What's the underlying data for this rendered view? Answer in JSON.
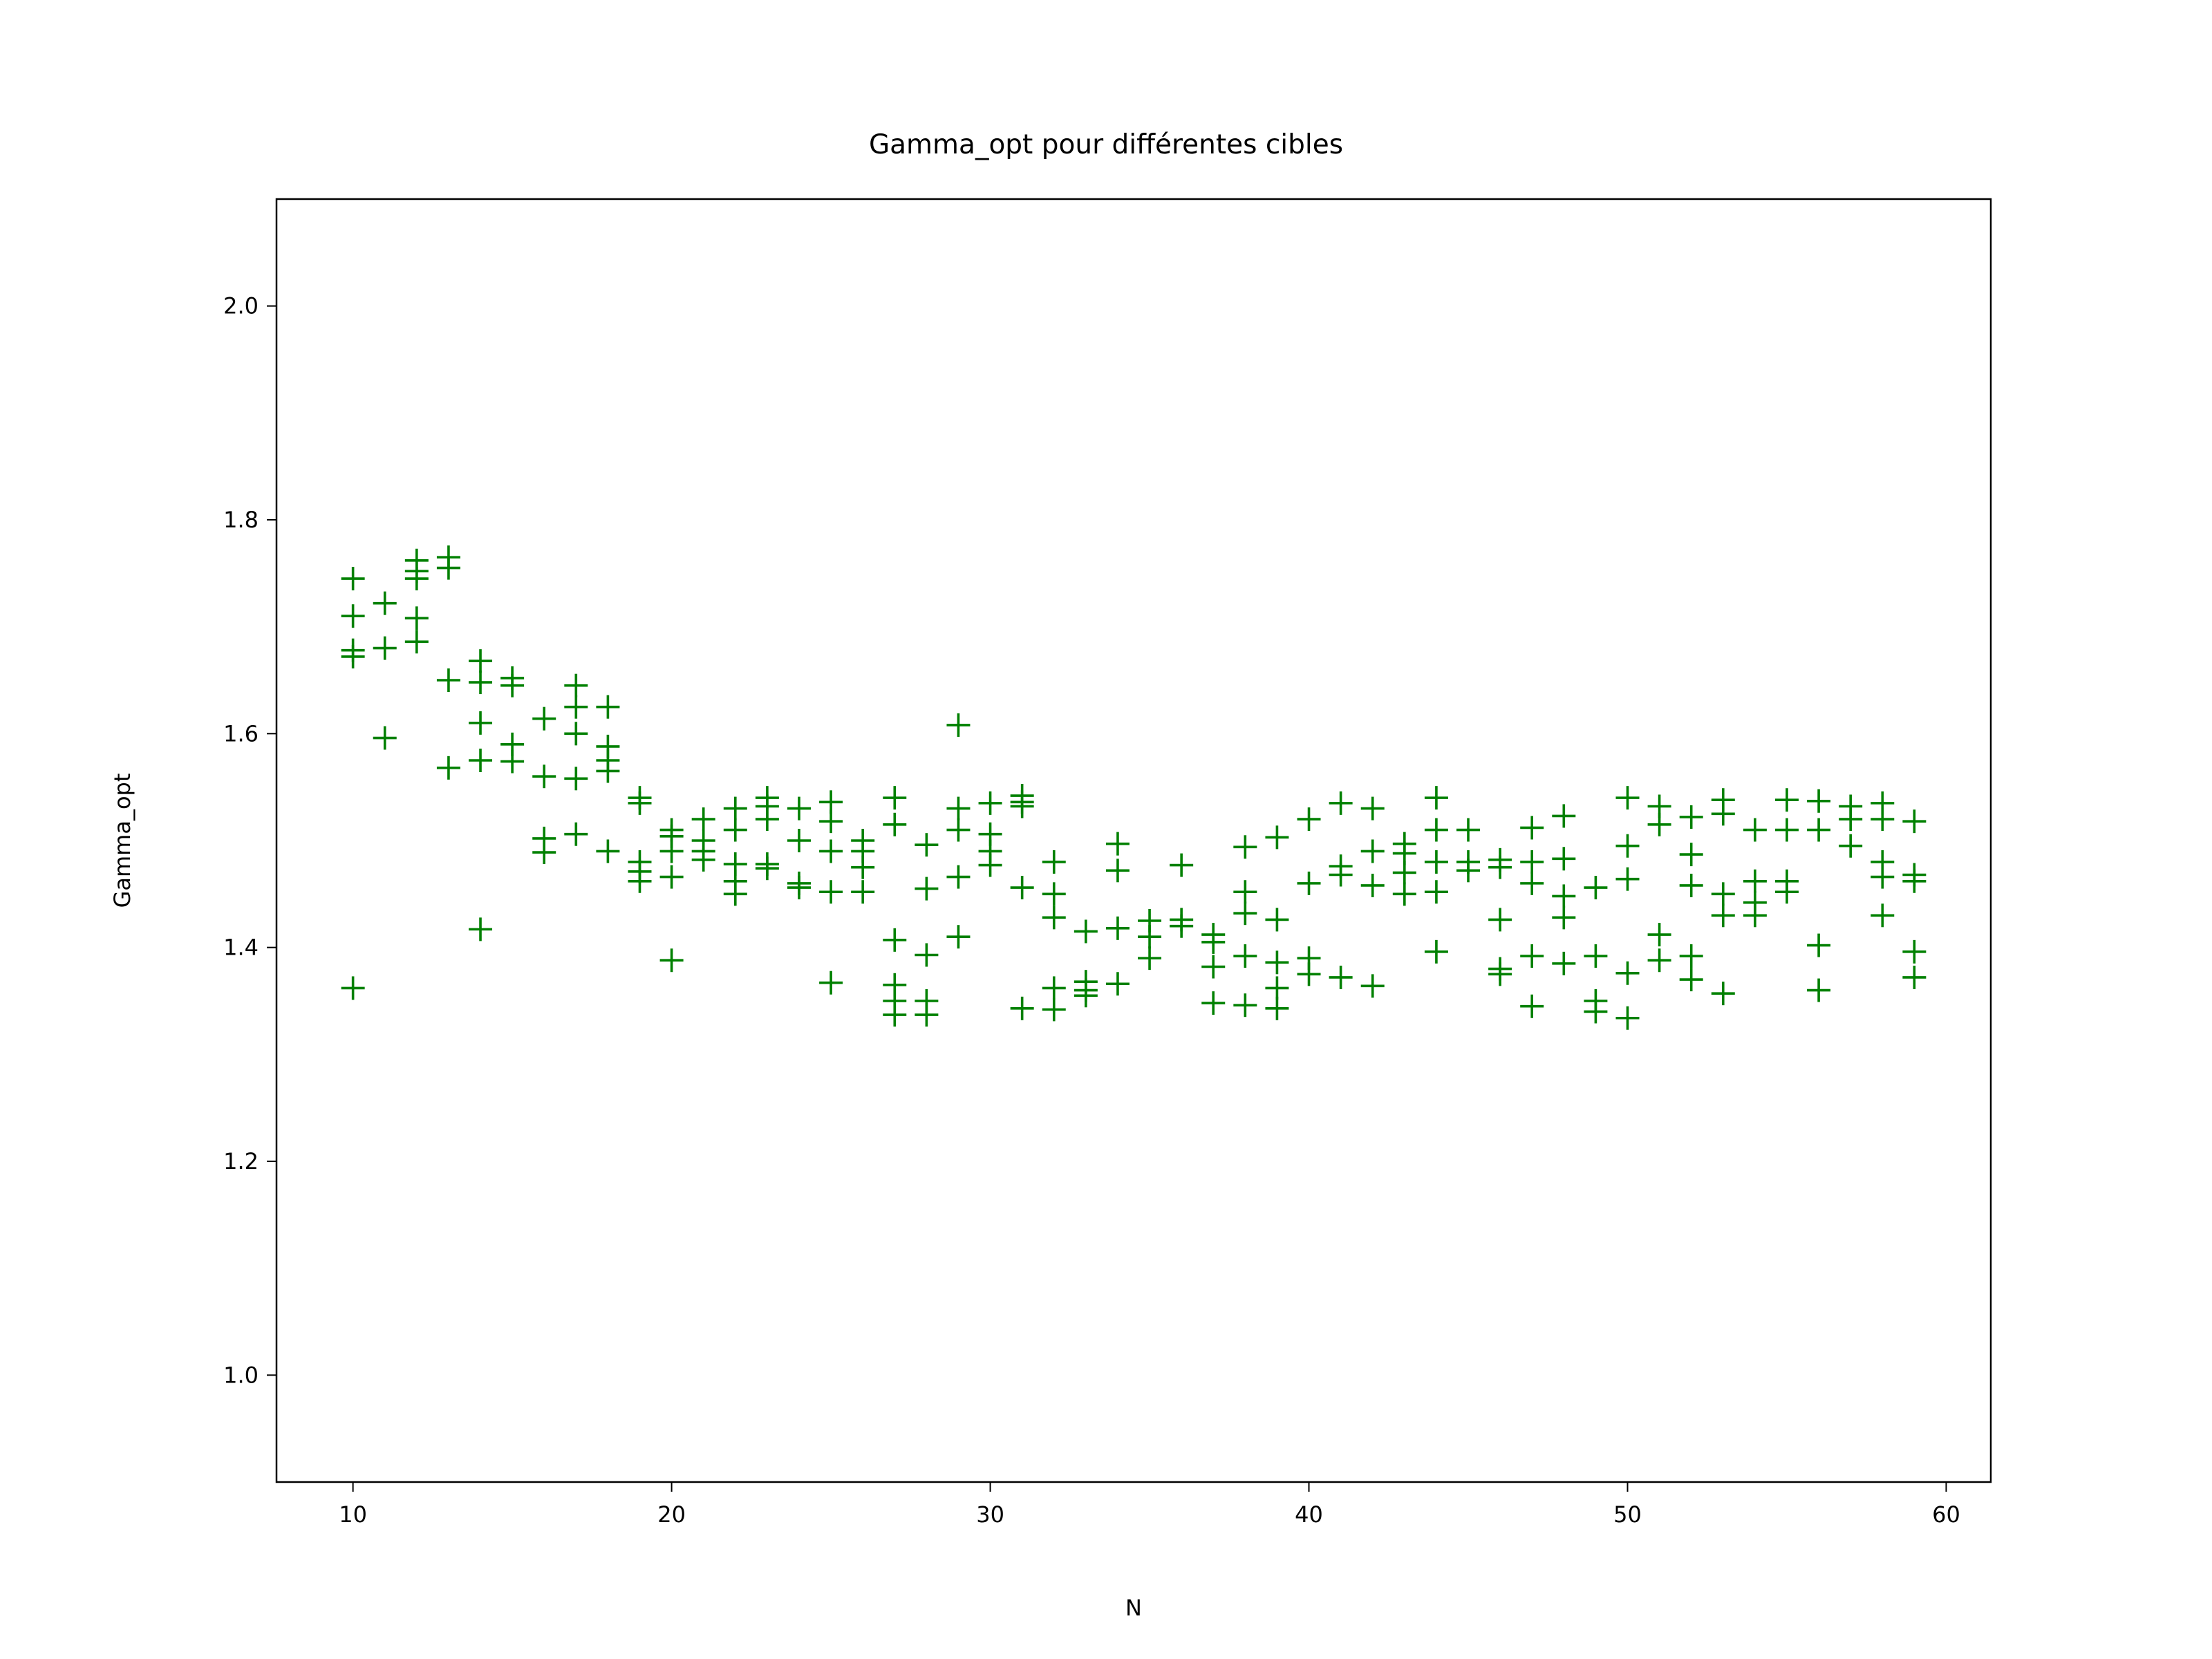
{
  "chart_data": {
    "type": "scatter",
    "title": "Gamma_opt pour différentes cibles",
    "xlabel": "N",
    "ylabel": "Gamma_opt",
    "xlim": [
      7.6,
      61.4
    ],
    "ylim": [
      0.9,
      2.1
    ],
    "x_ticks": [
      10,
      20,
      30,
      40,
      50,
      60
    ],
    "x_tick_labels": [
      "10",
      "20",
      "30",
      "40",
      "50",
      "60"
    ],
    "y_ticks": [
      1.0,
      1.2,
      1.4,
      1.6,
      1.8,
      2.0
    ],
    "y_tick_labels": [
      "1.0",
      "1.2",
      "1.4",
      "1.6",
      "1.8",
      "2.0"
    ],
    "grid": false,
    "marker": "+",
    "color": "#008000",
    "series": [
      {
        "points": [
          [
            10,
            1.745
          ],
          [
            10,
            1.71
          ],
          [
            10,
            1.678
          ],
          [
            10,
            1.672
          ],
          [
            10,
            1.362
          ],
          [
            11,
            1.722
          ],
          [
            11,
            1.68
          ],
          [
            11,
            1.596
          ],
          [
            12,
            1.762
          ],
          [
            12,
            1.752
          ],
          [
            12,
            1.745
          ],
          [
            12,
            1.708
          ],
          [
            12,
            1.686
          ],
          [
            13,
            1.765
          ],
          [
            13,
            1.755
          ],
          [
            13,
            1.65
          ],
          [
            13,
            1.568
          ],
          [
            14,
            1.668
          ],
          [
            14,
            1.648
          ],
          [
            14,
            1.61
          ],
          [
            14,
            1.575
          ],
          [
            14,
            1.417
          ],
          [
            15,
            1.652
          ],
          [
            15,
            1.645
          ],
          [
            15,
            1.59
          ],
          [
            15,
            1.574
          ],
          [
            16,
            1.614
          ],
          [
            16,
            1.56
          ],
          [
            16,
            1.502
          ],
          [
            16,
            1.489
          ],
          [
            17,
            1.645
          ],
          [
            17,
            1.625
          ],
          [
            17,
            1.6
          ],
          [
            17,
            1.558
          ],
          [
            17,
            1.506
          ],
          [
            18,
            1.625
          ],
          [
            18,
            1.588
          ],
          [
            18,
            1.575
          ],
          [
            18,
            1.565
          ],
          [
            18,
            1.49
          ],
          [
            19,
            1.54
          ],
          [
            19,
            1.535
          ],
          [
            19,
            1.48
          ],
          [
            19,
            1.471
          ],
          [
            19,
            1.462
          ],
          [
            20,
            1.51
          ],
          [
            20,
            1.504
          ],
          [
            20,
            1.49
          ],
          [
            20,
            1.466
          ],
          [
            20,
            1.388
          ],
          [
            21,
            1.52
          ],
          [
            21,
            1.5
          ],
          [
            21,
            1.49
          ],
          [
            21,
            1.482
          ],
          [
            22,
            1.53
          ],
          [
            22,
            1.51
          ],
          [
            22,
            1.478
          ],
          [
            22,
            1.462
          ],
          [
            22,
            1.45
          ],
          [
            23,
            1.54
          ],
          [
            23,
            1.532
          ],
          [
            23,
            1.52
          ],
          [
            23,
            1.478
          ],
          [
            23,
            1.474
          ],
          [
            24,
            1.53
          ],
          [
            24,
            1.5
          ],
          [
            24,
            1.46
          ],
          [
            24,
            1.456
          ],
          [
            25,
            1.536
          ],
          [
            25,
            1.518
          ],
          [
            25,
            1.49
          ],
          [
            25,
            1.452
          ],
          [
            25,
            1.367
          ],
          [
            26,
            1.5
          ],
          [
            26,
            1.49
          ],
          [
            26,
            1.475
          ],
          [
            26,
            1.452
          ],
          [
            27,
            1.54
          ],
          [
            27,
            1.515
          ],
          [
            27,
            1.407
          ],
          [
            27,
            1.365
          ],
          [
            27,
            1.35
          ],
          [
            27,
            1.337
          ],
          [
            28,
            1.496
          ],
          [
            28,
            1.455
          ],
          [
            28,
            1.393
          ],
          [
            28,
            1.35
          ],
          [
            28,
            1.337
          ],
          [
            29,
            1.608
          ],
          [
            29,
            1.53
          ],
          [
            29,
            1.51
          ],
          [
            29,
            1.466
          ],
          [
            29,
            1.41
          ],
          [
            30,
            1.535
          ],
          [
            30,
            1.506
          ],
          [
            30,
            1.49
          ],
          [
            30,
            1.477
          ],
          [
            31,
            1.542
          ],
          [
            31,
            1.536
          ],
          [
            31,
            1.532
          ],
          [
            31,
            1.456
          ],
          [
            31,
            1.343
          ],
          [
            32,
            1.48
          ],
          [
            32,
            1.45
          ],
          [
            32,
            1.428
          ],
          [
            32,
            1.362
          ],
          [
            32,
            1.342
          ],
          [
            33,
            1.415
          ],
          [
            33,
            1.368
          ],
          [
            33,
            1.36
          ],
          [
            33,
            1.355
          ],
          [
            34,
            1.497
          ],
          [
            34,
            1.472
          ],
          [
            34,
            1.418
          ],
          [
            34,
            1.366
          ],
          [
            35,
            1.425
          ],
          [
            35,
            1.41
          ],
          [
            35,
            1.39
          ],
          [
            36,
            1.477
          ],
          [
            36,
            1.426
          ],
          [
            36,
            1.42
          ],
          [
            37,
            1.412
          ],
          [
            37,
            1.405
          ],
          [
            37,
            1.382
          ],
          [
            37,
            1.348
          ],
          [
            38,
            1.494
          ],
          [
            38,
            1.452
          ],
          [
            38,
            1.432
          ],
          [
            38,
            1.392
          ],
          [
            38,
            1.346
          ],
          [
            39,
            1.503
          ],
          [
            39,
            1.426
          ],
          [
            39,
            1.386
          ],
          [
            39,
            1.362
          ],
          [
            39,
            1.343
          ],
          [
            40,
            1.52
          ],
          [
            40,
            1.46
          ],
          [
            40,
            1.39
          ],
          [
            40,
            1.375
          ],
          [
            41,
            1.535
          ],
          [
            41,
            1.476
          ],
          [
            41,
            1.468
          ],
          [
            41,
            1.372
          ],
          [
            42,
            1.53
          ],
          [
            42,
            1.49
          ],
          [
            42,
            1.458
          ],
          [
            42,
            1.364
          ],
          [
            43,
            1.497
          ],
          [
            43,
            1.488
          ],
          [
            43,
            1.47
          ],
          [
            43,
            1.45
          ],
          [
            44,
            1.54
          ],
          [
            44,
            1.51
          ],
          [
            44,
            1.48
          ],
          [
            44,
            1.452
          ],
          [
            44,
            1.396
          ],
          [
            45,
            1.51
          ],
          [
            45,
            1.48
          ],
          [
            45,
            1.472
          ],
          [
            46,
            1.482
          ],
          [
            46,
            1.475
          ],
          [
            46,
            1.426
          ],
          [
            46,
            1.38
          ],
          [
            46,
            1.375
          ],
          [
            47,
            1.512
          ],
          [
            47,
            1.48
          ],
          [
            47,
            1.46
          ],
          [
            47,
            1.392
          ],
          [
            47,
            1.345
          ],
          [
            48,
            1.523
          ],
          [
            48,
            1.483
          ],
          [
            48,
            1.448
          ],
          [
            48,
            1.428
          ],
          [
            48,
            1.385
          ],
          [
            49,
            1.456
          ],
          [
            49,
            1.392
          ],
          [
            49,
            1.35
          ],
          [
            49,
            1.34
          ],
          [
            50,
            1.54
          ],
          [
            50,
            1.495
          ],
          [
            50,
            1.464
          ],
          [
            50,
            1.376
          ],
          [
            50,
            1.334
          ],
          [
            51,
            1.532
          ],
          [
            51,
            1.515
          ],
          [
            51,
            1.412
          ],
          [
            51,
            1.388
          ],
          [
            52,
            1.522
          ],
          [
            52,
            1.487
          ],
          [
            52,
            1.458
          ],
          [
            52,
            1.392
          ],
          [
            52,
            1.37
          ],
          [
            53,
            1.538
          ],
          [
            53,
            1.525
          ],
          [
            53,
            1.45
          ],
          [
            53,
            1.43
          ],
          [
            53,
            1.357
          ],
          [
            54,
            1.51
          ],
          [
            54,
            1.462
          ],
          [
            54,
            1.442
          ],
          [
            54,
            1.43
          ],
          [
            55,
            1.538
          ],
          [
            55,
            1.51
          ],
          [
            55,
            1.462
          ],
          [
            55,
            1.452
          ],
          [
            56,
            1.537
          ],
          [
            56,
            1.51
          ],
          [
            56,
            1.402
          ],
          [
            56,
            1.36
          ],
          [
            57,
            1.532
          ],
          [
            57,
            1.52
          ],
          [
            57,
            1.495
          ],
          [
            58,
            1.535
          ],
          [
            58,
            1.52
          ],
          [
            58,
            1.48
          ],
          [
            58,
            1.466
          ],
          [
            58,
            1.43
          ],
          [
            59,
            1.518
          ],
          [
            59,
            1.468
          ],
          [
            59,
            1.462
          ],
          [
            59,
            1.396
          ],
          [
            59,
            1.372
          ]
        ]
      }
    ]
  }
}
